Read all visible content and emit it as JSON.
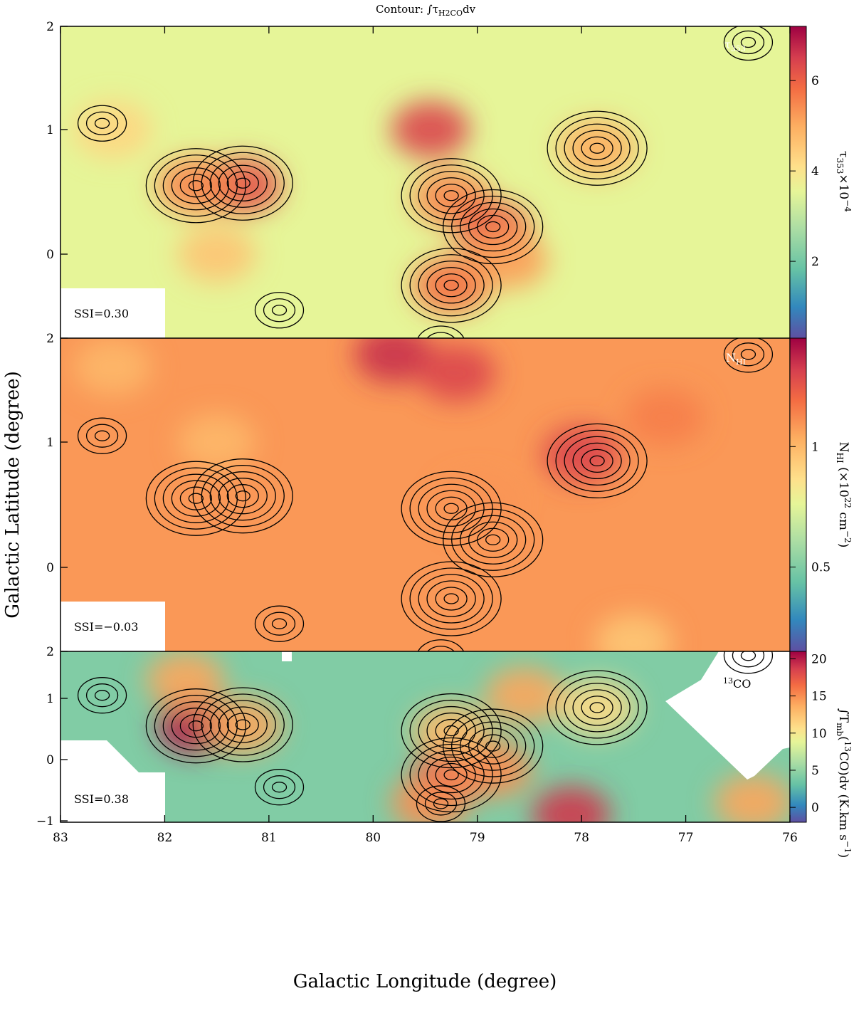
{
  "chart_data": {
    "type": "heatmap",
    "title": "Contour: ∫τH2COdv",
    "xlabel": "Galactic Longitude (degree)",
    "ylabel": "Galactic Latitude (degree)",
    "xlim": [
      83,
      76
    ],
    "ylim": [
      -1,
      2
    ],
    "x_ticks": [
      83,
      82,
      81,
      80,
      79,
      78,
      77,
      76
    ],
    "y_ticks": [
      0,
      1,
      2
    ],
    "y_ticks_bottom_panel": [
      -1,
      0,
      1,
      2
    ],
    "contour_peaks": [
      {
        "l": 81.7,
        "b": 0.55
      },
      {
        "l": 81.25,
        "b": 0.57
      },
      {
        "l": 79.25,
        "b": 0.47
      },
      {
        "l": 79.25,
        "b": -0.25
      },
      {
        "l": 78.85,
        "b": 0.22
      },
      {
        "l": 77.85,
        "b": 0.85
      },
      {
        "l": 79.35,
        "b": -0.72
      },
      {
        "l": 80.9,
        "b": -0.45
      },
      {
        "l": 82.6,
        "b": 1.05
      },
      {
        "l": 76.4,
        "b": 1.7
      }
    ],
    "panels": [
      {
        "name": "τ353",
        "colorbar_label": "τ353×10^-4",
        "colorbar_ticks": [
          "2",
          "4",
          "6"
        ],
        "colorbar_range": [
          0.3,
          7.2
        ],
        "ssi": "SSI=0.30",
        "hotspots": [
          {
            "l": 81.25,
            "b": 0.55,
            "v": 6.2
          },
          {
            "l": 81.7,
            "b": 0.55,
            "v": 5.5
          },
          {
            "l": 79.45,
            "b": 1.0,
            "v": 6.4
          },
          {
            "l": 79.25,
            "b": 0.45,
            "v": 5.5
          },
          {
            "l": 78.85,
            "b": 0.2,
            "v": 6.0
          },
          {
            "l": 79.25,
            "b": -0.25,
            "v": 5.8
          },
          {
            "l": 78.7,
            "b": -0.05,
            "v": 5.2
          },
          {
            "l": 77.85,
            "b": 0.85,
            "v": 5.0
          },
          {
            "l": 81.5,
            "b": 0.0,
            "v": 4.6
          },
          {
            "l": 82.5,
            "b": 1.0,
            "v": 4.3
          }
        ]
      },
      {
        "name": "NHI",
        "colorbar_label": "NHI (×10^22 cm^-2)",
        "colorbar_ticks": [
          "0.5",
          "1"
        ],
        "colorbar_range": [
          0.15,
          1.45
        ],
        "ssi": "SSI=−0.03",
        "hotspots": [
          {
            "l": 79.8,
            "b": 1.7,
            "v": 1.35
          },
          {
            "l": 79.2,
            "b": 1.55,
            "v": 1.3
          },
          {
            "l": 78.0,
            "b": 0.9,
            "v": 1.3
          },
          {
            "l": 77.2,
            "b": 1.2,
            "v": 1.15
          },
          {
            "l": 79.0,
            "b": 0.5,
            "v": 1.1
          },
          {
            "l": 81.5,
            "b": 1.0,
            "v": 1.0
          },
          {
            "l": 82.5,
            "b": 1.6,
            "v": 1.0
          },
          {
            "l": 77.5,
            "b": -0.6,
            "v": 0.95
          }
        ]
      },
      {
        "name": "13CO",
        "colorbar_label": "∫Tmb(13CO)dv (K.km s^-1)",
        "colorbar_ticks": [
          "0",
          "5",
          "10",
          "15",
          "20"
        ],
        "colorbar_range": [
          -2,
          21
        ],
        "ssi": "SSI=0.38",
        "hotspots": [
          {
            "l": 81.7,
            "b": 0.55,
            "v": 20
          },
          {
            "l": 81.25,
            "b": 0.55,
            "v": 14
          },
          {
            "l": 81.8,
            "b": 1.3,
            "v": 14
          },
          {
            "l": 79.25,
            "b": -0.25,
            "v": 18
          },
          {
            "l": 78.85,
            "b": -0.15,
            "v": 15
          },
          {
            "l": 79.25,
            "b": 0.45,
            "v": 13
          },
          {
            "l": 79.45,
            "b": -0.7,
            "v": 15
          },
          {
            "l": 78.1,
            "b": -0.9,
            "v": 19
          },
          {
            "l": 76.35,
            "b": -0.7,
            "v": 14
          },
          {
            "l": 78.55,
            "b": 1.05,
            "v": 14
          },
          {
            "l": 77.85,
            "b": 0.85,
            "v": 11
          }
        ]
      }
    ]
  },
  "labels": {
    "title_prefix": "Contour: ∫τ",
    "title_sub": "H2CO",
    "title_suffix": "dv",
    "panel1_tag": "τ",
    "panel1_tag_sub": "353",
    "panel2_tag": "N",
    "panel2_tag_sub": "HI",
    "panel3_tag_sup": "13",
    "panel3_tag": "CO",
    "cb1_main": "τ",
    "cb1_sub": "353",
    "cb1_rest": "×10",
    "cb1_sup": "−4",
    "cb2_main": "N",
    "cb2_sub": "HI",
    "cb2_rest": " (×10",
    "cb2_sup1": "22",
    "cb2_rest2": " cm",
    "cb2_sup2": "−2",
    "cb2_end": ")",
    "cb3_main": "∫T",
    "cb3_sub": "mb",
    "cb3_rest": "(",
    "cb3_sup1": "13",
    "cb3_rest2": "CO)dv (K.km s",
    "cb3_sup2": "−1",
    "cb3_end": ")"
  }
}
